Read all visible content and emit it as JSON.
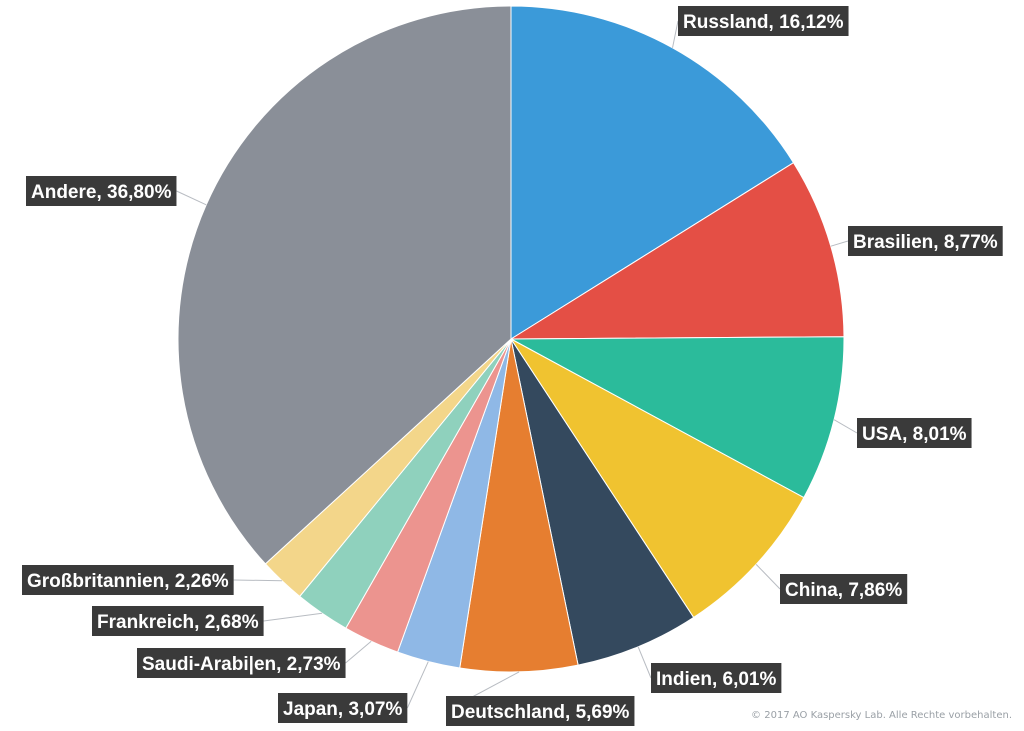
{
  "chart_data": {
    "type": "pie",
    "slices": [
      {
        "label": "Russland, 16,12%",
        "value": 16.12,
        "color": "#3b9ad9"
      },
      {
        "label": "Brasilien, 8,77%",
        "value": 8.77,
        "color": "#e44f45"
      },
      {
        "label": "USA, 8,01%",
        "value": 8.01,
        "color": "#2bbb9b"
      },
      {
        "label": "China, 7,86%",
        "value": 7.86,
        "color": "#f0c330"
      },
      {
        "label": "Indien, 6,01%",
        "value": 6.01,
        "color": "#34495e"
      },
      {
        "label": "Deutschland, 5,69%",
        "value": 5.69,
        "color": "#e67e30"
      },
      {
        "label": "Japan, 3,07%",
        "value": 3.07,
        "color": "#8fb8e6"
      },
      {
        "label": "Saudi-Arabi|en, 2,73%",
        "value": 2.73,
        "color": "#ec948f"
      },
      {
        "label": "Frankreich, 2,68%",
        "value": 2.68,
        "color": "#8fd1bd"
      },
      {
        "label": "Großbritannien, 2,26%",
        "value": 2.26,
        "color": "#f3d68a"
      },
      {
        "label": "Andere, 36,80%",
        "value": 36.8,
        "color": "#8a8f98"
      }
    ]
  },
  "footer": {
    "copyright": "© 2017 AO Kaspersky Lab. Alle Rechte vorbehalten."
  }
}
